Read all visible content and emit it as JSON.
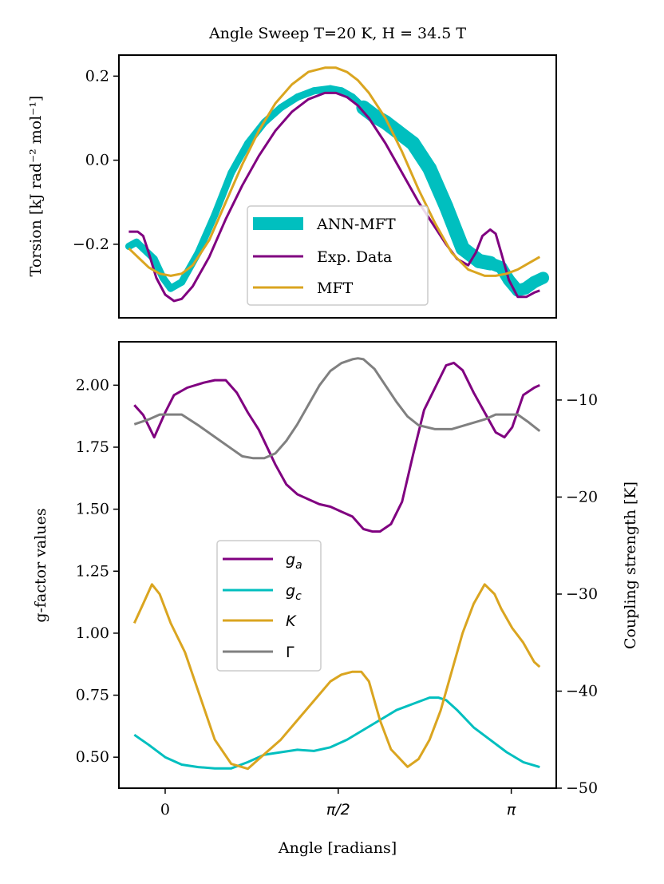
{
  "chart_data": [
    {
      "type": "line",
      "title": "Angle Sweep T=20 K, H = 34.5 T",
      "xlabel": "",
      "ylabel": "Torsion [kJ rad⁻² mol⁻¹]",
      "xlim": [
        -0.42,
        3.55
      ],
      "ylim": [
        -0.375,
        0.25
      ],
      "yticks": [
        -0.2,
        0.0,
        0.2
      ],
      "ytick_labels": [
        "−0.2",
        "0.0",
        "0.2"
      ],
      "series": [
        {
          "name": "ANN-MFT",
          "color": "#00bfbf",
          "x": [
            -0.33,
            -0.26,
            -0.2,
            -0.1,
            -0.02,
            0.05,
            0.15,
            0.3,
            0.45,
            0.6,
            0.75,
            0.9,
            1.05,
            1.2,
            1.35,
            1.5,
            1.6,
            1.7,
            1.8,
            1.9,
            2.0,
            2.1,
            2.25,
            2.4,
            2.55,
            2.7,
            2.85,
            2.95,
            3.05,
            3.12,
            3.2,
            3.27,
            3.35,
            3.43
          ],
          "y": [
            -0.205,
            -0.195,
            -0.21,
            -0.235,
            -0.28,
            -0.305,
            -0.29,
            -0.22,
            -0.13,
            -0.03,
            0.04,
            0.09,
            0.125,
            0.15,
            0.165,
            0.17,
            0.165,
            0.15,
            0.125,
            0.105,
            0.09,
            0.07,
            0.04,
            -0.02,
            -0.11,
            -0.21,
            -0.24,
            -0.245,
            -0.255,
            -0.285,
            -0.31,
            -0.305,
            -0.29,
            -0.28
          ],
          "width_min": 6,
          "width_max": 18
        },
        {
          "name": "Exp. Data",
          "color": "#800080",
          "x": [
            -0.33,
            -0.25,
            -0.2,
            -0.15,
            -0.08,
            0.0,
            0.08,
            0.15,
            0.25,
            0.4,
            0.55,
            0.7,
            0.85,
            1.0,
            1.15,
            1.3,
            1.45,
            1.55,
            1.65,
            1.75,
            1.85,
            2.0,
            2.15,
            2.3,
            2.45,
            2.55,
            2.65,
            2.75,
            2.82,
            2.88,
            2.95,
            3.0,
            3.05,
            3.12,
            3.2,
            3.28,
            3.35,
            3.4
          ],
          "y": [
            -0.17,
            -0.17,
            -0.18,
            -0.22,
            -0.28,
            -0.32,
            -0.335,
            -0.33,
            -0.3,
            -0.23,
            -0.14,
            -0.06,
            0.01,
            0.07,
            0.115,
            0.145,
            0.16,
            0.16,
            0.15,
            0.13,
            0.1,
            0.04,
            -0.03,
            -0.1,
            -0.16,
            -0.2,
            -0.235,
            -0.25,
            -0.22,
            -0.18,
            -0.165,
            -0.175,
            -0.22,
            -0.285,
            -0.325,
            -0.325,
            -0.315,
            -0.31
          ]
        },
        {
          "name": "MFT",
          "color": "#daa520",
          "x": [
            -0.33,
            -0.25,
            -0.15,
            -0.05,
            0.05,
            0.15,
            0.25,
            0.4,
            0.55,
            0.7,
            0.85,
            1.0,
            1.15,
            1.3,
            1.45,
            1.55,
            1.65,
            1.75,
            1.85,
            2.0,
            2.15,
            2.3,
            2.45,
            2.6,
            2.75,
            2.9,
            3.0,
            3.1,
            3.2,
            3.3,
            3.4
          ],
          "y": [
            -0.21,
            -0.23,
            -0.255,
            -0.27,
            -0.275,
            -0.27,
            -0.25,
            -0.19,
            -0.1,
            -0.01,
            0.07,
            0.135,
            0.18,
            0.21,
            0.22,
            0.22,
            0.21,
            0.19,
            0.16,
            0.1,
            0.02,
            -0.07,
            -0.15,
            -0.22,
            -0.26,
            -0.275,
            -0.275,
            -0.27,
            -0.26,
            -0.245,
            -0.23
          ]
        }
      ],
      "legend": {
        "location": "lower center",
        "entries": [
          "ANN-MFT",
          "Exp. Data",
          "MFT"
        ]
      }
    },
    {
      "type": "line",
      "xlabel": "Angle [radians]",
      "ylabel": "g-factor values",
      "ylabel_right": "Coupling strength [K]",
      "xlim": [
        -0.42,
        3.55
      ],
      "ylim": [
        0.375,
        2.175
      ],
      "ylim_right": [
        -50,
        -4.0
      ],
      "xticks": [
        0,
        1.5708,
        3.1416
      ],
      "xtick_labels": [
        "0",
        "π/2",
        "π"
      ],
      "yticks": [
        0.5,
        0.75,
        1.0,
        1.25,
        1.5,
        1.75,
        2.0
      ],
      "ytick_labels": [
        "0.50",
        "0.75",
        "1.00",
        "1.25",
        "1.50",
        "1.75",
        "2.00"
      ],
      "yticks_right": [
        -50,
        -40,
        -30,
        -20,
        -10
      ],
      "ytick_labels_right": [
        "−50",
        "−40",
        "−30",
        "−20",
        "−10"
      ],
      "series": [
        {
          "name": "g_a",
          "label": "g",
          "subscript": "a",
          "color": "#800080",
          "axis": "left",
          "x": [
            -0.28,
            -0.2,
            -0.1,
            0.0,
            0.08,
            0.2,
            0.35,
            0.45,
            0.55,
            0.65,
            0.75,
            0.85,
            1.0,
            1.1,
            1.2,
            1.3,
            1.4,
            1.5,
            1.6,
            1.7,
            1.8,
            1.88,
            1.95,
            2.05,
            2.15,
            2.25,
            2.35,
            2.45,
            2.55,
            2.62,
            2.7,
            2.8,
            2.9,
            3.0,
            3.08,
            3.15,
            3.25,
            3.35,
            3.4
          ],
          "y": [
            1.92,
            1.88,
            1.79,
            1.89,
            1.96,
            1.99,
            2.01,
            2.02,
            2.02,
            1.97,
            1.89,
            1.82,
            1.68,
            1.6,
            1.56,
            1.54,
            1.52,
            1.51,
            1.49,
            1.47,
            1.42,
            1.41,
            1.41,
            1.44,
            1.53,
            1.72,
            1.9,
            1.99,
            2.08,
            2.09,
            2.06,
            1.97,
            1.89,
            1.81,
            1.79,
            1.83,
            1.96,
            1.99,
            2.0
          ]
        },
        {
          "name": "g_c",
          "label": "g",
          "subscript": "c",
          "color": "#00bfbf",
          "axis": "left",
          "x": [
            -0.28,
            -0.15,
            0.0,
            0.15,
            0.3,
            0.45,
            0.6,
            0.75,
            0.9,
            1.05,
            1.2,
            1.35,
            1.5,
            1.65,
            1.8,
            1.95,
            2.1,
            2.25,
            2.4,
            2.48,
            2.55,
            2.65,
            2.8,
            2.95,
            3.1,
            3.25,
            3.4
          ],
          "y": [
            0.59,
            0.55,
            0.5,
            0.47,
            0.46,
            0.455,
            0.455,
            0.48,
            0.51,
            0.52,
            0.53,
            0.525,
            0.54,
            0.57,
            0.61,
            0.65,
            0.69,
            0.715,
            0.74,
            0.74,
            0.73,
            0.69,
            0.62,
            0.57,
            0.52,
            0.48,
            0.46
          ]
        },
        {
          "name": "K",
          "label": "K",
          "color": "#daa520",
          "axis": "right",
          "x": [
            -0.28,
            -0.2,
            -0.12,
            -0.05,
            0.05,
            0.18,
            0.3,
            0.45,
            0.6,
            0.75,
            0.85,
            0.95,
            1.05,
            1.2,
            1.35,
            1.5,
            1.6,
            1.7,
            1.78,
            1.85,
            1.95,
            2.05,
            2.2,
            2.3,
            2.4,
            2.5,
            2.6,
            2.7,
            2.8,
            2.9,
            2.99,
            3.05,
            3.15,
            3.25,
            3.35,
            3.4
          ],
          "y": [
            -33,
            -31,
            -29,
            -30,
            -33,
            -36,
            -40,
            -45,
            -47.5,
            -48,
            -47,
            -46,
            -45,
            -43,
            -41,
            -39,
            -38.3,
            -38,
            -38,
            -39,
            -43,
            -46,
            -47.8,
            -47,
            -45,
            -42,
            -38,
            -34,
            -31,
            -29,
            -30,
            -31.5,
            -33.5,
            -35,
            -37,
            -37.5
          ]
        },
        {
          "name": "Gamma",
          "label": "Γ",
          "color": "#808080",
          "axis": "right",
          "x": [
            -0.28,
            -0.15,
            -0.05,
            0.05,
            0.15,
            0.3,
            0.45,
            0.6,
            0.7,
            0.8,
            0.9,
            1.0,
            1.1,
            1.2,
            1.3,
            1.4,
            1.5,
            1.6,
            1.7,
            1.75,
            1.8,
            1.9,
            2.0,
            2.1,
            2.2,
            2.3,
            2.45,
            2.6,
            2.75,
            2.9,
            3.0,
            3.1,
            3.2,
            3.3,
            3.4
          ],
          "y": [
            -12.5,
            -12,
            -11.5,
            -11.5,
            -11.5,
            -12.6,
            -13.8,
            -15,
            -15.8,
            -16,
            -16,
            -15.5,
            -14.2,
            -12.5,
            -10.5,
            -8.5,
            -7,
            -6.2,
            -5.8,
            -5.7,
            -5.8,
            -6.8,
            -8.5,
            -10.2,
            -11.7,
            -12.6,
            -13,
            -13,
            -12.5,
            -12,
            -11.5,
            -11.5,
            -11.5,
            -12.3,
            -13.2
          ]
        }
      ],
      "legend": {
        "location": "lower left",
        "entries": [
          "g_a",
          "g_c",
          "K",
          "Γ"
        ]
      }
    }
  ]
}
